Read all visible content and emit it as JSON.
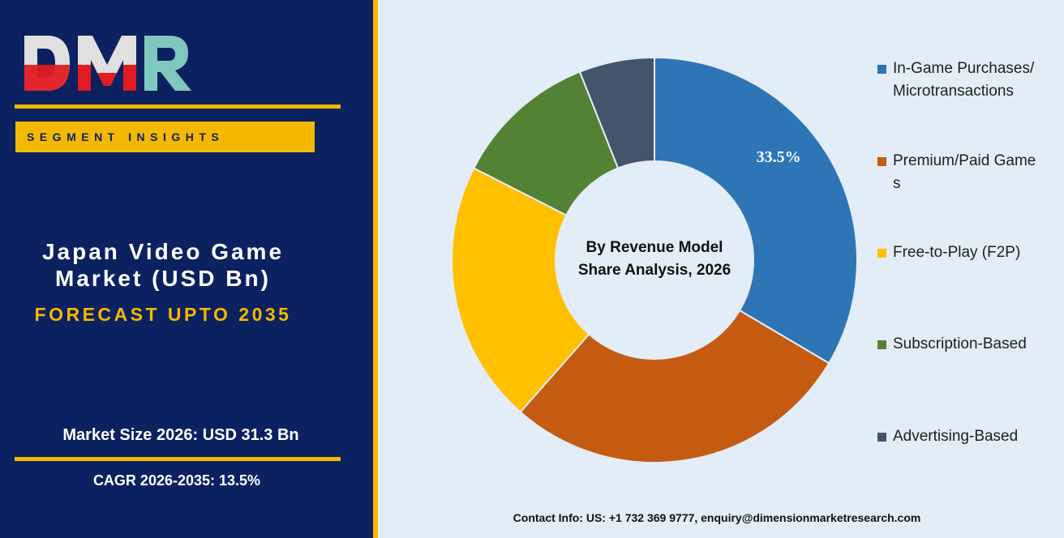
{
  "brand": {
    "logo_text": "DMR",
    "segment_label": "SEGMENT INSIGHTS"
  },
  "left_panel": {
    "title_line1": "Japan Video Game",
    "title_line2": "Market (USD Bn)",
    "forecast": "FORECAST UPTO 2035",
    "market_size": "Market Size 2026: USD 31.3 Bn",
    "cagr": "CAGR 2026-2035: 13.5%"
  },
  "contact": "Contact Info: US: +1 732 369 9777, enquiry@dimensionmarketresearch.com",
  "colors": {
    "panel_bg": "#0c2160",
    "accent": "#f5b800",
    "chart_bg": "#e3edf7"
  },
  "chart_data": {
    "type": "pie",
    "variant": "donut",
    "center_label_line1": "By Revenue Model",
    "center_label_line2": "Share Analysis, 2026",
    "legend_position": "right",
    "series": [
      {
        "name": "In-Game Purchases/Microtransactions",
        "value": 33.5,
        "color": "#2e75b6",
        "data_label": "33.5%"
      },
      {
        "name": "Premium/Paid Games",
        "value": 28.0,
        "color": "#c55a11",
        "data_label": ""
      },
      {
        "name": "Free-to-Play (F2P)",
        "value": 21.0,
        "color": "#ffc000",
        "data_label": ""
      },
      {
        "name": "Subscription-Based",
        "value": 11.5,
        "color": "#548235",
        "data_label": ""
      },
      {
        "name": "Advertising-Based",
        "value": 6.0,
        "color": "#44546a",
        "data_label": ""
      }
    ]
  }
}
